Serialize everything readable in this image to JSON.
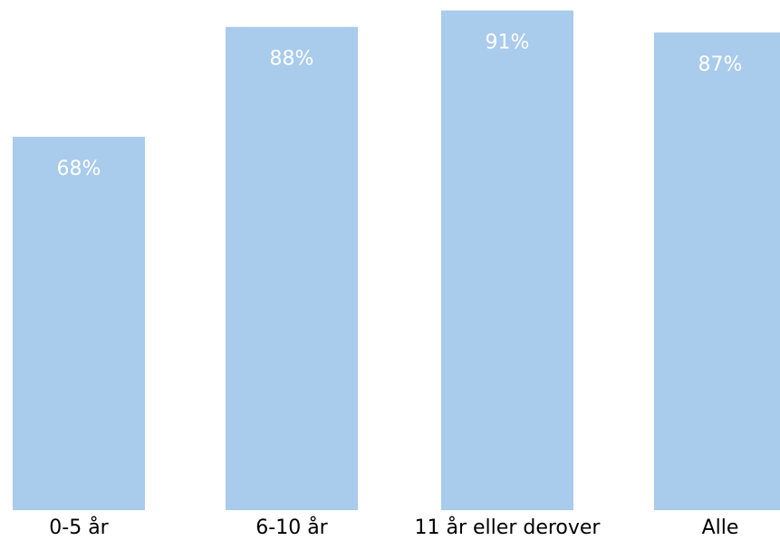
{
  "chart_data": {
    "type": "bar",
    "categories": [
      "0-5 år",
      "6-10 år",
      "11 år eller derover",
      "Alle"
    ],
    "values": [
      68,
      88,
      91,
      87
    ],
    "data_labels": [
      "68%",
      "88%",
      "91%",
      "87%"
    ],
    "ylim": [
      0,
      100
    ],
    "grid": false,
    "legend": "none",
    "bar_color": "#a9cbec",
    "label_color": "#ffffff",
    "tick_color": "#000000"
  }
}
